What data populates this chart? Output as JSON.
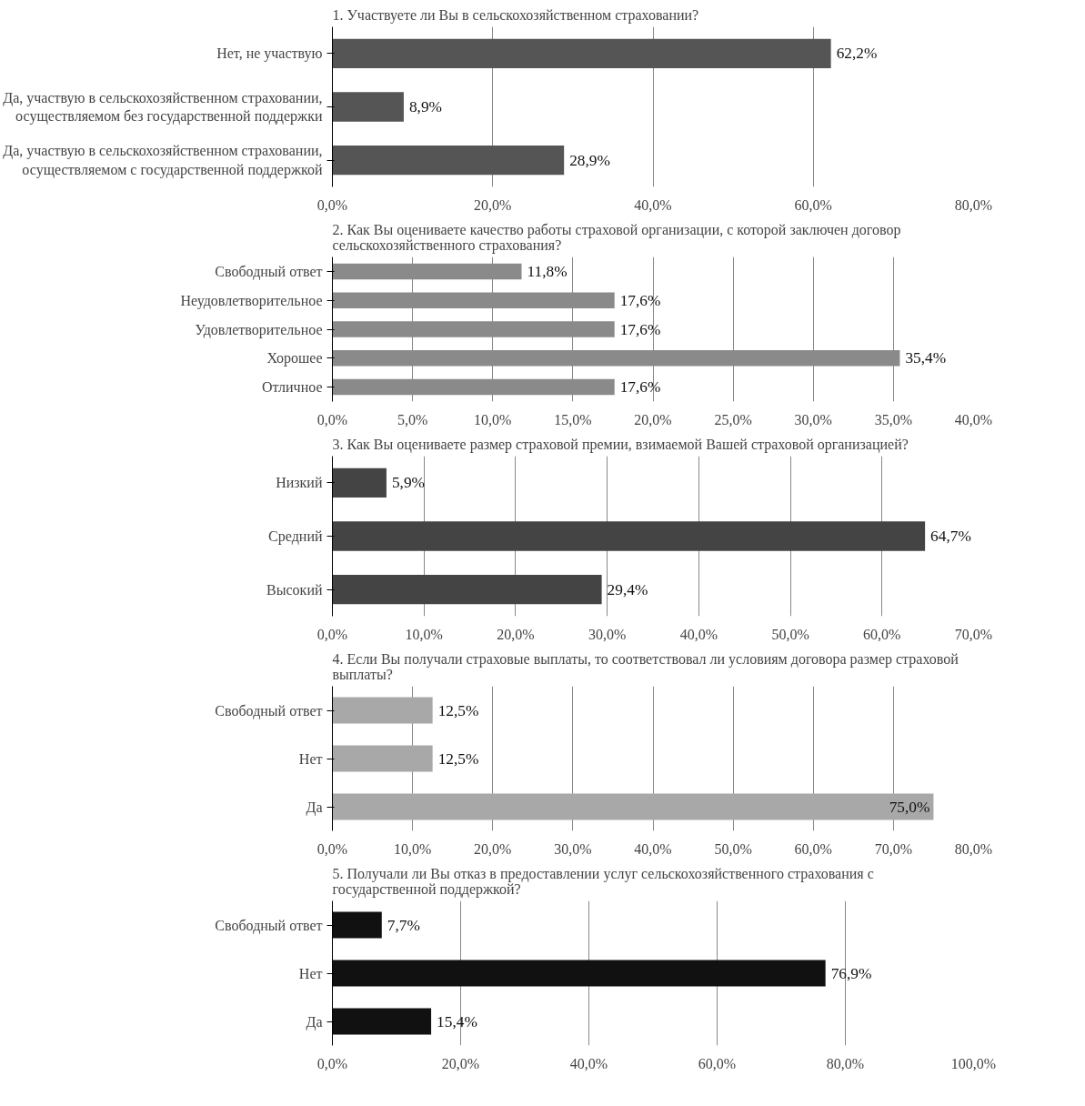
{
  "chart_data": [
    {
      "type": "bar",
      "orientation": "horizontal",
      "title": "1. Участвуете ли Вы в сельскохозяйственном страховании?",
      "categories": [
        "Нет, не участвую",
        "Да, участвую в сельскохозяйственном страховании, осуществляемом без государственной поддержки",
        "Да, участвую в сельскохозяйственном страховании, осуществляемом с государственной поддержкой"
      ],
      "values": [
        62.2,
        8.9,
        28.9
      ],
      "value_labels": [
        "62,2%",
        "8,9%",
        "28,9%"
      ],
      "color": "#555555",
      "xlim": [
        0,
        80
      ],
      "xticks": [
        {
          "value": 0,
          "label": "0,0%"
        },
        {
          "value": 20,
          "label": "20,0%"
        },
        {
          "value": 40,
          "label": "40,0%"
        },
        {
          "value": 60,
          "label": "60,0%"
        },
        {
          "value": 80,
          "label": "80,0%"
        }
      ],
      "grid": "x"
    },
    {
      "type": "bar",
      "orientation": "horizontal",
      "title": "2. Как Вы оцениваете качество работы страховой организации, с которой заключен договор сельскохозяйственного страхования?",
      "categories": [
        "Свободный ответ",
        "Неудовлетворительное",
        "Удовлетворительное",
        "Хорошее",
        "Отличное"
      ],
      "values": [
        11.8,
        17.6,
        17.6,
        35.4,
        17.6
      ],
      "value_labels": [
        "11,8%",
        "17,6%",
        "17,6%",
        "35,4%",
        "17,6%"
      ],
      "color": "#8a8a8a",
      "xlim": [
        0,
        40
      ],
      "xticks": [
        {
          "value": 0,
          "label": "0,0%"
        },
        {
          "value": 5,
          "label": "5,0%"
        },
        {
          "value": 10,
          "label": "10,0%"
        },
        {
          "value": 15,
          "label": "15,0%"
        },
        {
          "value": 20,
          "label": "20,0%"
        },
        {
          "value": 25,
          "label": "25,0%"
        },
        {
          "value": 30,
          "label": "30,0%"
        },
        {
          "value": 35,
          "label": "35,0%"
        },
        {
          "value": 40,
          "label": "40,0%"
        }
      ],
      "grid": "x"
    },
    {
      "type": "bar",
      "orientation": "horizontal",
      "title": "3. Как Вы оцениваете размер страховой премии, взимаемой Вашей страховой организацией?",
      "categories": [
        "Низкий",
        "Средний",
        "Высокий"
      ],
      "values": [
        5.9,
        64.7,
        29.4
      ],
      "value_labels": [
        "5,9%",
        "64,7%",
        "29,4%"
      ],
      "color": "#444444",
      "xlim": [
        0,
        70
      ],
      "xticks": [
        {
          "value": 0,
          "label": "0,0%"
        },
        {
          "value": 10,
          "label": "10,0%"
        },
        {
          "value": 20,
          "label": "20,0%"
        },
        {
          "value": 30,
          "label": "30,0%"
        },
        {
          "value": 40,
          "label": "40,0%"
        },
        {
          "value": 50,
          "label": "50,0%"
        },
        {
          "value": 60,
          "label": "60,0%"
        },
        {
          "value": 70,
          "label": "70,0%"
        }
      ],
      "grid": "x"
    },
    {
      "type": "bar",
      "orientation": "horizontal",
      "title": "4. Если Вы получали страховые выплаты, то соответствовал ли условиям договора размер страховой выплаты?",
      "categories": [
        "Свободный ответ",
        "Нет",
        "Да"
      ],
      "values": [
        12.5,
        12.5,
        75.0
      ],
      "value_labels": [
        "12,5%",
        "12,5%",
        "75,0%"
      ],
      "color": "#a8a8a8",
      "xlim": [
        0,
        80
      ],
      "xticks": [
        {
          "value": 0,
          "label": "0,0%"
        },
        {
          "value": 10,
          "label": "10,0%"
        },
        {
          "value": 20,
          "label": "20,0%"
        },
        {
          "value": 30,
          "label": "30,0%"
        },
        {
          "value": 40,
          "label": "40,0%"
        },
        {
          "value": 50,
          "label": "50,0%"
        },
        {
          "value": 60,
          "label": "60,0%"
        },
        {
          "value": 70,
          "label": "70,0%"
        },
        {
          "value": 80,
          "label": "80,0%"
        }
      ],
      "grid": "x"
    },
    {
      "type": "bar",
      "orientation": "horizontal",
      "title": "5. Получали ли Вы отказ в предоставлении услуг сельскохозяйственного страхования с государственной поддержкой?",
      "categories": [
        "Свободный ответ",
        "Нет",
        "Да"
      ],
      "values": [
        7.7,
        76.9,
        15.4
      ],
      "value_labels": [
        "7,7%",
        "76,9%",
        "15,4%"
      ],
      "color": "#111111",
      "xlim": [
        0,
        100
      ],
      "xticks": [
        {
          "value": 0,
          "label": "0,0%"
        },
        {
          "value": 20,
          "label": "20,0%"
        },
        {
          "value": 40,
          "label": "40,0%"
        },
        {
          "value": 60,
          "label": "60,0%"
        },
        {
          "value": 80,
          "label": "80,0%"
        },
        {
          "value": 100,
          "label": "100,0%"
        }
      ],
      "grid": "x"
    }
  ]
}
